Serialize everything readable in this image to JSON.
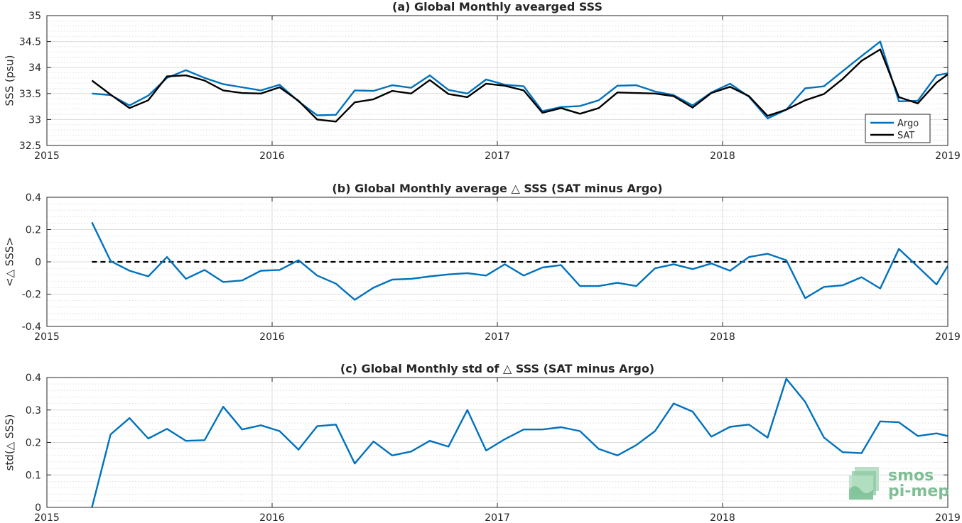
{
  "logo": {
    "line1": "smos",
    "line2": "pi-mep"
  },
  "colors": {
    "argo": "#0072BD",
    "sat": "#000000"
  },
  "chart_data": [
    {
      "type": "line",
      "title": "(a) Global Monthly avearged SSS",
      "xlabel": "",
      "ylabel": "SSS (psu)",
      "xlim": [
        2015,
        2019
      ],
      "ylim": [
        32.5,
        35
      ],
      "xticks": [
        2015,
        2016,
        2017,
        2018,
        2019
      ],
      "xtick_labels": [
        "2015",
        "2016",
        "2017",
        "2018",
        "2019"
      ],
      "yticks": [
        32.5,
        33,
        33.5,
        34,
        34.5,
        35
      ],
      "ytick_labels": [
        "32.5",
        "33",
        "33.5",
        "34",
        "34.5",
        "35"
      ],
      "grid": true,
      "legend": "bottom-right",
      "x": [
        2015.2,
        2015.283,
        2015.367,
        2015.45,
        2015.533,
        2015.617,
        2015.7,
        2015.783,
        2015.867,
        2015.95,
        2016.033,
        2016.117,
        2016.2,
        2016.283,
        2016.367,
        2016.45,
        2016.533,
        2016.617,
        2016.7,
        2016.783,
        2016.867,
        2016.95,
        2017.033,
        2017.117,
        2017.2,
        2017.283,
        2017.367,
        2017.45,
        2017.533,
        2017.617,
        2017.7,
        2017.783,
        2017.867,
        2017.95,
        2018.033,
        2018.117,
        2018.2,
        2018.283,
        2018.367,
        2018.45,
        2018.533,
        2018.617,
        2018.7,
        2018.783,
        2018.867,
        2018.95,
        2019.0
      ],
      "series": [
        {
          "name": "Argo",
          "color": "#0072BD",
          "values": [
            33.5,
            33.47,
            33.27,
            33.46,
            33.8,
            33.95,
            33.8,
            33.68,
            33.62,
            33.56,
            33.67,
            33.35,
            33.08,
            33.09,
            33.56,
            33.55,
            33.66,
            33.61,
            33.85,
            33.57,
            33.5,
            33.77,
            33.67,
            33.64,
            33.16,
            33.24,
            33.26,
            33.37,
            33.65,
            33.66,
            33.54,
            33.47,
            33.27,
            33.52,
            33.69,
            33.44,
            33.02,
            33.19,
            33.6,
            33.64,
            33.93,
            34.22,
            34.5,
            33.35,
            33.36,
            33.85,
            33.89
          ]
        },
        {
          "name": "SAT",
          "color": "#000000",
          "values": [
            33.75,
            33.48,
            33.22,
            33.37,
            33.83,
            33.85,
            33.75,
            33.56,
            33.51,
            33.5,
            33.62,
            33.36,
            33.0,
            32.96,
            33.33,
            33.39,
            33.55,
            33.5,
            33.76,
            33.49,
            33.43,
            33.69,
            33.65,
            33.56,
            33.13,
            33.22,
            33.11,
            33.22,
            33.52,
            33.51,
            33.5,
            33.45,
            33.23,
            33.51,
            33.63,
            33.45,
            33.07,
            33.19,
            33.37,
            33.49,
            33.78,
            34.13,
            34.35,
            33.43,
            33.31,
            33.71,
            33.87
          ]
        }
      ]
    },
    {
      "type": "line",
      "title": "(b) Global Monthly average △ SSS (SAT minus Argo)",
      "xlabel": "",
      "ylabel": "<△ SSS>",
      "xlim": [
        2015,
        2019
      ],
      "ylim": [
        -0.4,
        0.4
      ],
      "xticks": [
        2015,
        2016,
        2017,
        2018,
        2019
      ],
      "xtick_labels": [
        "2015",
        "2016",
        "2017",
        "2018",
        "2019"
      ],
      "yticks": [
        -0.4,
        -0.2,
        0,
        0.2,
        0.4
      ],
      "ytick_labels": [
        "-0.4",
        "-0.2",
        "0",
        "0.2",
        "0.4"
      ],
      "grid": true,
      "reference_line": 0,
      "x": [
        2015.2,
        2015.283,
        2015.367,
        2015.45,
        2015.533,
        2015.617,
        2015.7,
        2015.783,
        2015.867,
        2015.95,
        2016.033,
        2016.117,
        2016.2,
        2016.283,
        2016.367,
        2016.45,
        2016.533,
        2016.617,
        2016.7,
        2016.783,
        2016.867,
        2016.95,
        2017.033,
        2017.117,
        2017.2,
        2017.283,
        2017.367,
        2017.45,
        2017.533,
        2017.617,
        2017.7,
        2017.783,
        2017.867,
        2017.95,
        2018.033,
        2018.117,
        2018.2,
        2018.283,
        2018.367,
        2018.45,
        2018.533,
        2018.617,
        2018.7,
        2018.783,
        2018.867,
        2018.95,
        2019.0
      ],
      "series": [
        {
          "name": "",
          "color": "#0072BD",
          "values": [
            0.245,
            0.005,
            -0.055,
            -0.09,
            0.03,
            -0.105,
            -0.05,
            -0.125,
            -0.115,
            -0.055,
            -0.05,
            0.01,
            -0.085,
            -0.135,
            -0.235,
            -0.16,
            -0.11,
            -0.105,
            -0.09,
            -0.078,
            -0.07,
            -0.085,
            -0.015,
            -0.085,
            -0.035,
            -0.02,
            -0.15,
            -0.15,
            -0.13,
            -0.15,
            -0.04,
            -0.015,
            -0.045,
            -0.01,
            -0.055,
            0.03,
            0.05,
            0.01,
            -0.225,
            -0.155,
            -0.145,
            -0.095,
            -0.165,
            0.08,
            -0.03,
            -0.14,
            -0.025
          ]
        }
      ]
    },
    {
      "type": "line",
      "title": "(c) Global Monthly std of △ SSS (SAT minus Argo)",
      "xlabel": "",
      "ylabel": "std(△ SSS)",
      "xlim": [
        2015,
        2019
      ],
      "ylim": [
        0,
        0.4
      ],
      "xticks": [
        2015,
        2016,
        2017,
        2018,
        2019
      ],
      "xtick_labels": [
        "2015",
        "2016",
        "2017",
        "2018",
        "2019"
      ],
      "yticks": [
        0,
        0.1,
        0.2,
        0.3,
        0.4
      ],
      "ytick_labels": [
        "0",
        "0.1",
        "0.2",
        "0.3",
        "0.4"
      ],
      "grid": true,
      "x": [
        2015.2,
        2015.283,
        2015.367,
        2015.45,
        2015.533,
        2015.617,
        2015.7,
        2015.783,
        2015.867,
        2015.95,
        2016.033,
        2016.117,
        2016.2,
        2016.283,
        2016.367,
        2016.45,
        2016.533,
        2016.617,
        2016.7,
        2016.783,
        2016.867,
        2016.95,
        2017.033,
        2017.117,
        2017.2,
        2017.283,
        2017.367,
        2017.45,
        2017.533,
        2017.617,
        2017.7,
        2017.783,
        2017.867,
        2017.95,
        2018.033,
        2018.117,
        2018.2,
        2018.283,
        2018.367,
        2018.45,
        2018.533,
        2018.617,
        2018.7,
        2018.783,
        2018.867,
        2018.95,
        2019.0
      ],
      "series": [
        {
          "name": "",
          "color": "#0072BD",
          "values": [
            0.0,
            0.225,
            0.275,
            0.212,
            0.242,
            0.205,
            0.207,
            0.31,
            0.24,
            0.253,
            0.235,
            0.178,
            0.25,
            0.255,
            0.135,
            0.203,
            0.16,
            0.172,
            0.205,
            0.187,
            0.3,
            0.175,
            0.21,
            0.24,
            0.24,
            0.247,
            0.235,
            0.18,
            0.16,
            0.192,
            0.235,
            0.32,
            0.295,
            0.218,
            0.248,
            0.255,
            0.215,
            0.396,
            0.325,
            0.215,
            0.17,
            0.167,
            0.265,
            0.262,
            0.22,
            0.228,
            0.22
          ]
        }
      ]
    }
  ]
}
